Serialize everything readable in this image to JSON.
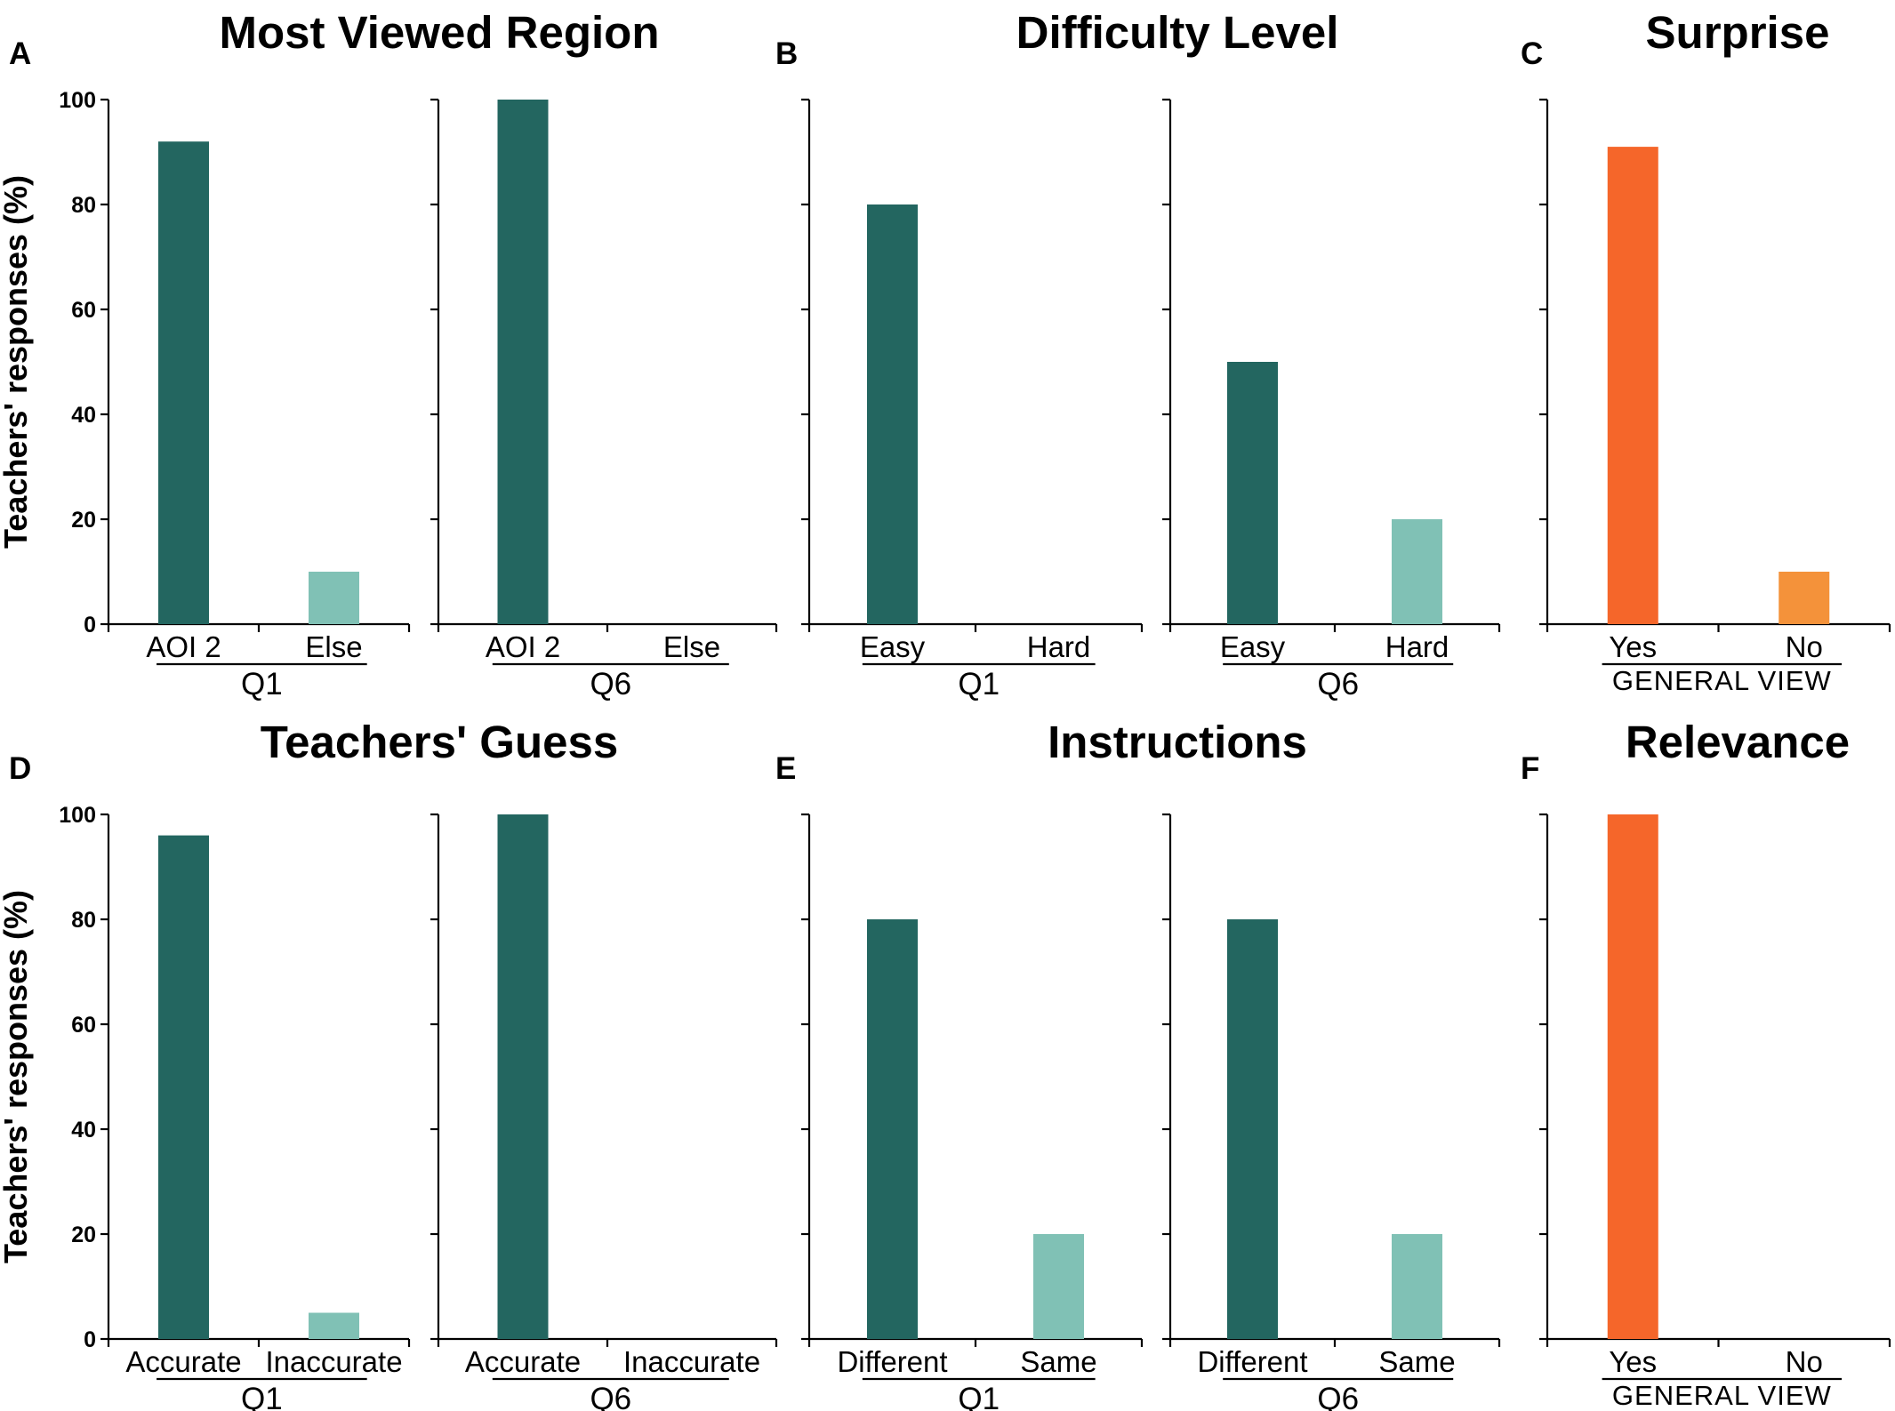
{
  "ylabel": "Teachers' responses (%)",
  "colors": {
    "dark_teal": "#236660",
    "light_teal": "#80c1b5",
    "orange_red": "#f5662a",
    "orange": "#f4923a"
  },
  "chart_data": [
    {
      "type": "bar",
      "label": "A",
      "title": "Most Viewed Region",
      "ylabel": "Teachers' responses (%)",
      "ylim": [
        0,
        100
      ],
      "yticks": [
        0,
        20,
        40,
        60,
        80,
        100
      ],
      "panels": [
        {
          "group": "Q1",
          "categories": [
            "AOI 2",
            "Else"
          ],
          "values": [
            92,
            10
          ]
        },
        {
          "group": "Q6",
          "categories": [
            "AOI 2",
            "Else"
          ],
          "values": [
            100,
            0
          ]
        }
      ]
    },
    {
      "type": "bar",
      "label": "B",
      "title": "Difficulty Level",
      "ylim": [
        0,
        100
      ],
      "panels": [
        {
          "group": "Q1",
          "categories": [
            "Easy",
            "Hard"
          ],
          "values": [
            80,
            0
          ]
        },
        {
          "group": "Q6",
          "categories": [
            "Easy",
            "Hard"
          ],
          "values": [
            50,
            20
          ]
        }
      ]
    },
    {
      "type": "bar",
      "label": "C",
      "title": "Surprise",
      "ylim": [
        0,
        100
      ],
      "panels": [
        {
          "group": "GENERAL VIEW",
          "categories": [
            "Yes",
            "No"
          ],
          "values": [
            91,
            10
          ]
        }
      ]
    },
    {
      "type": "bar",
      "label": "D",
      "title": "Teachers' Guess",
      "ylabel": "Teachers' responses (%)",
      "ylim": [
        0,
        100
      ],
      "yticks": [
        0,
        20,
        40,
        60,
        80,
        100
      ],
      "panels": [
        {
          "group": "Q1",
          "categories": [
            "Accurate",
            "Inaccurate"
          ],
          "values": [
            96,
            5
          ]
        },
        {
          "group": "Q6",
          "categories": [
            "Accurate",
            "Inaccurate"
          ],
          "values": [
            100,
            0
          ]
        }
      ]
    },
    {
      "type": "bar",
      "label": "E",
      "title": "Instructions",
      "ylim": [
        0,
        100
      ],
      "panels": [
        {
          "group": "Q1",
          "categories": [
            "Different",
            "Same"
          ],
          "values": [
            80,
            20
          ]
        },
        {
          "group": "Q6",
          "categories": [
            "Different",
            "Same"
          ],
          "values": [
            80,
            20
          ]
        }
      ]
    },
    {
      "type": "bar",
      "label": "F",
      "title": "Relevance",
      "ylim": [
        0,
        100
      ],
      "panels": [
        {
          "group": "GENERAL VIEW",
          "categories": [
            "Yes",
            "No"
          ],
          "values": [
            100,
            0
          ]
        }
      ]
    }
  ]
}
